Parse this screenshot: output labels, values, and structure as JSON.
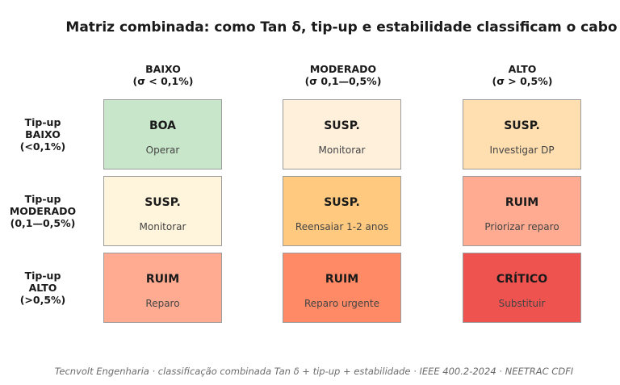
{
  "title": "Matriz combinada: como Tan δ, tip-up e estabilidade classificam o cabo",
  "columns": [
    {
      "label": "BAIXO",
      "range": "(σ < 0,1%)"
    },
    {
      "label": "MODERADO",
      "range": "(σ 0,1—0,5%)"
    },
    {
      "label": "ALTO",
      "range": "(σ > 0,5%)"
    }
  ],
  "rows": [
    {
      "line1": "Tip-up",
      "line2": "BAIXO",
      "line3": "(<0,1%)"
    },
    {
      "line1": "Tip-up",
      "line2": "MODERADO",
      "line3": "(0,1—0,5%)"
    },
    {
      "line1": "Tip-up",
      "line2": "ALTO",
      "line3": "(>0,5%)"
    }
  ],
  "cells": [
    [
      {
        "label": "BOA",
        "action": "Operar",
        "color": "#c8e6c9"
      },
      {
        "label": "SUSP.",
        "action": "Monitorar",
        "color": "#fff0dc"
      },
      {
        "label": "SUSP.",
        "action": "Investigar DP",
        "color": "#ffdeb0"
      }
    ],
    [
      {
        "label": "SUSP.",
        "action": "Monitorar",
        "color": "#fff5dc"
      },
      {
        "label": "SUSP.",
        "action": "Reensaiar 1-2 anos",
        "color": "#ffca80"
      },
      {
        "label": "RUIM",
        "action": "Priorizar reparo",
        "color": "#ffab91"
      }
    ],
    [
      {
        "label": "RUIM",
        "action": "Reparo",
        "color": "#ffab91"
      },
      {
        "label": "RUIM",
        "action": "Reparo urgente",
        "color": "#ff8a65"
      },
      {
        "label": "CRÍTICO",
        "action": "Substituir",
        "color": "#ef5350"
      }
    ]
  ],
  "footer": "Tecnvolt Engenharia · classificação combinada Tan δ + tip-up + estabilidade · IEEE 400.2-2024 · NEETRAC CDFI"
}
